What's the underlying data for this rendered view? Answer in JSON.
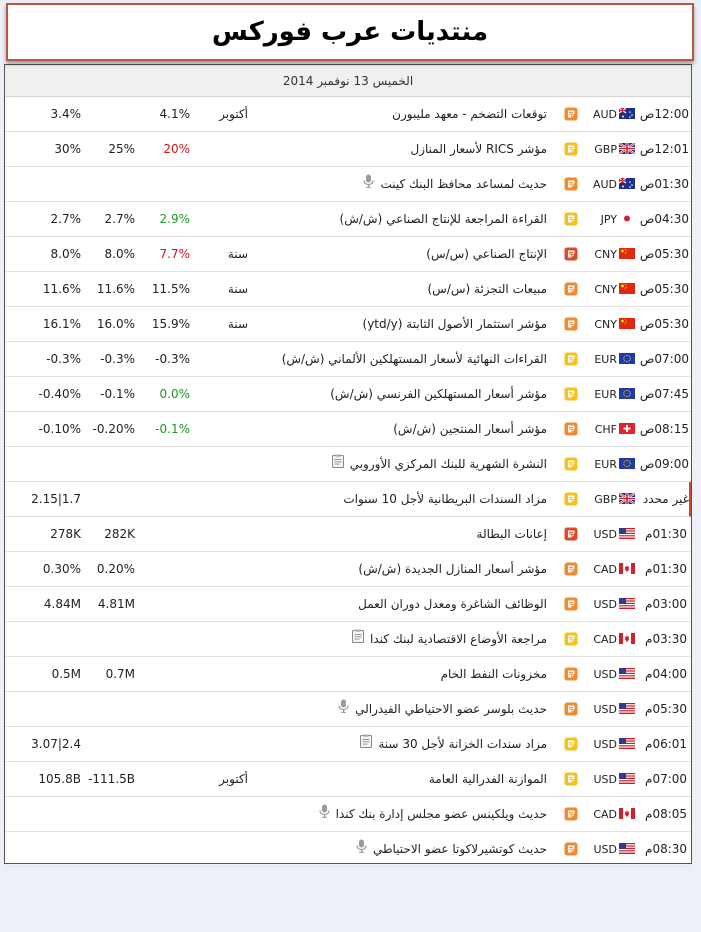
{
  "header": {
    "title": "منتديات عرب فوركس"
  },
  "calendar": {
    "date": "الخميس 13 نوفمبر 2014",
    "rows": [
      {
        "time": "12:00ص",
        "currency": "AUD",
        "flag": "au",
        "importance": "medium",
        "event": "توقعات التضخم - معهد مليبورن",
        "event_icon": "",
        "period": "أكتوبر",
        "actual": "4.1%",
        "actual_color": "",
        "forecast": "",
        "previous": "3.4%"
      },
      {
        "time": "12:01ص",
        "currency": "GBP",
        "flag": "gb",
        "importance": "low",
        "event": "مؤشر RICS لأسعار المنازل",
        "event_icon": "",
        "period": "",
        "actual": "20%",
        "actual_color": "red",
        "forecast": "25%",
        "previous": "30%"
      },
      {
        "time": "01:30ص",
        "currency": "AUD",
        "flag": "au",
        "importance": "medium",
        "event": "حديث لمساعد محافظ البنك كينت",
        "event_icon": "mic",
        "period": "",
        "actual": "",
        "actual_color": "",
        "forecast": "",
        "previous": ""
      },
      {
        "time": "04:30ص",
        "currency": "JPY",
        "flag": "jp",
        "importance": "low",
        "event": "القراءة المراجعة للإنتاج الصناعي (ش/ش)",
        "event_icon": "",
        "period": "",
        "actual": "2.9%",
        "actual_color": "green",
        "forecast": "2.7%",
        "previous": "2.7%"
      },
      {
        "time": "05:30ص",
        "currency": "CNY",
        "flag": "cn",
        "importance": "high",
        "event": "الإنتاج الصناعي (س/س)",
        "event_icon": "",
        "period": "سنة",
        "actual": "7.7%",
        "actual_color": "red",
        "forecast": "8.0%",
        "previous": "8.0%"
      },
      {
        "time": "05:30ص",
        "currency": "CNY",
        "flag": "cn",
        "importance": "medium",
        "event": "مبيعات التجزئة (س/س)",
        "event_icon": "",
        "period": "سنة",
        "actual": "11.5%",
        "actual_color": "",
        "forecast": "11.6%",
        "previous": "11.6%"
      },
      {
        "time": "05:30ص",
        "currency": "CNY",
        "flag": "cn",
        "importance": "medium",
        "event": "مؤشر استثمار الأصول الثابتة (ytd/y)",
        "event_icon": "",
        "period": "سنة",
        "actual": "15.9%",
        "actual_color": "",
        "forecast": "16.0%",
        "previous": "16.1%"
      },
      {
        "time": "07:00ص",
        "currency": "EUR",
        "flag": "eu",
        "importance": "low",
        "event": "القراءات النهائية لأسعار المستهلكين الألماني (ش/ش)",
        "event_icon": "",
        "period": "",
        "actual": "-0.3%",
        "actual_color": "",
        "forecast": "-0.3%",
        "previous": "-0.3%"
      },
      {
        "time": "07:45ص",
        "currency": "EUR",
        "flag": "eu",
        "importance": "low",
        "event": "مؤشر أسعار المستهلكين الفرنسي (ش/ش)",
        "event_icon": "",
        "period": "",
        "actual": "0.0%",
        "actual_color": "green",
        "forecast": "-0.1%",
        "previous": "-0.40%"
      },
      {
        "time": "08:15ص",
        "currency": "CHF",
        "flag": "ch",
        "importance": "medium",
        "event": "مؤشر أسعار المنتجين (ش/ش)",
        "event_icon": "",
        "period": "",
        "actual": "-0.1%",
        "actual_color": "green",
        "forecast": "-0.20%",
        "previous": "-0.10%"
      },
      {
        "time": "09:00ص",
        "currency": "EUR",
        "flag": "eu",
        "importance": "low",
        "event": "النشرة الشهرية للبنك المركزي الأوروبي",
        "event_icon": "doc",
        "period": "",
        "actual": "",
        "actual_color": "",
        "forecast": "",
        "previous": ""
      },
      {
        "time": "غير محدد",
        "currency": "GBP",
        "flag": "gb",
        "importance": "low",
        "event": "مزاد السندات البريطانية لأجل 10 سنوات",
        "event_icon": "",
        "period": "",
        "actual": "",
        "actual_color": "",
        "forecast": "",
        "previous": "2.15|1.7",
        "highlight": true
      },
      {
        "time": "01:30م",
        "currency": "USD",
        "flag": "us",
        "importance": "high",
        "event": "إعانات البطالة",
        "event_icon": "",
        "period": "",
        "actual": "",
        "actual_color": "",
        "forecast": "282K",
        "previous": "278K"
      },
      {
        "time": "01:30م",
        "currency": "CAD",
        "flag": "ca",
        "importance": "medium",
        "event": "مؤشر أسعار المنازل الجديدة (ش/ش)",
        "event_icon": "",
        "period": "",
        "actual": "",
        "actual_color": "",
        "forecast": "0.20%",
        "previous": "0.30%"
      },
      {
        "time": "03:00م",
        "currency": "USD",
        "flag": "us",
        "importance": "medium",
        "event": "الوظائف الشاغرة ومعدل دوران العمل",
        "event_icon": "",
        "period": "",
        "actual": "",
        "actual_color": "",
        "forecast": "4.81M",
        "previous": "4.84M"
      },
      {
        "time": "03:30م",
        "currency": "CAD",
        "flag": "ca",
        "importance": "low",
        "event": "مراجعة الأوضاع الاقتصادية لبنك كندا",
        "event_icon": "doc",
        "period": "",
        "actual": "",
        "actual_color": "",
        "forecast": "",
        "previous": ""
      },
      {
        "time": "04:00م",
        "currency": "USD",
        "flag": "us",
        "importance": "medium",
        "event": "مخزونات النفط الخام",
        "event_icon": "",
        "period": "",
        "actual": "",
        "actual_color": "",
        "forecast": "0.7M",
        "previous": "0.5M"
      },
      {
        "time": "05:30م",
        "currency": "USD",
        "flag": "us",
        "importance": "medium",
        "event": "حديث بلوسر عضو الاحتياطي الفيدرالي",
        "event_icon": "mic",
        "period": "",
        "actual": "",
        "actual_color": "",
        "forecast": "",
        "previous": ""
      },
      {
        "time": "06:01م",
        "currency": "USD",
        "flag": "us",
        "importance": "low",
        "event": "مزاد سندات الخزانة لأجل 30 سنة",
        "event_icon": "doc",
        "period": "",
        "actual": "",
        "actual_color": "",
        "forecast": "",
        "previous": "3.07|2.4"
      },
      {
        "time": "07:00م",
        "currency": "USD",
        "flag": "us",
        "importance": "low",
        "event": "الموازنة الفدرالية العامة",
        "event_icon": "",
        "period": "أكتوبر",
        "actual": "",
        "actual_color": "",
        "forecast": "-111.5B",
        "previous": "105.8B"
      },
      {
        "time": "08:05م",
        "currency": "CAD",
        "flag": "ca",
        "importance": "medium",
        "event": "حديث ويلكينس عضو مجلس إدارة بنك كندا",
        "event_icon": "mic",
        "period": "",
        "actual": "",
        "actual_color": "",
        "forecast": "",
        "previous": ""
      },
      {
        "time": "08:30م",
        "currency": "USD",
        "flag": "us",
        "importance": "medium",
        "event": "حديث كوتشيرلاكوتا عضو الاحتياطي",
        "event_icon": "mic",
        "period": "",
        "actual": "",
        "actual_color": "",
        "forecast": "",
        "previous": ""
      }
    ]
  },
  "colors": {
    "importance_high": "#e04a2b",
    "importance_medium": "#f28a2c",
    "importance_low": "#f5c21d",
    "actual_green": "#1c9a1c",
    "actual_red": "#d11818",
    "header_border": "#b9573f"
  },
  "icons": {
    "importance": "calendar-importance-icon",
    "mic": "microphone-icon",
    "doc": "document-icon"
  }
}
